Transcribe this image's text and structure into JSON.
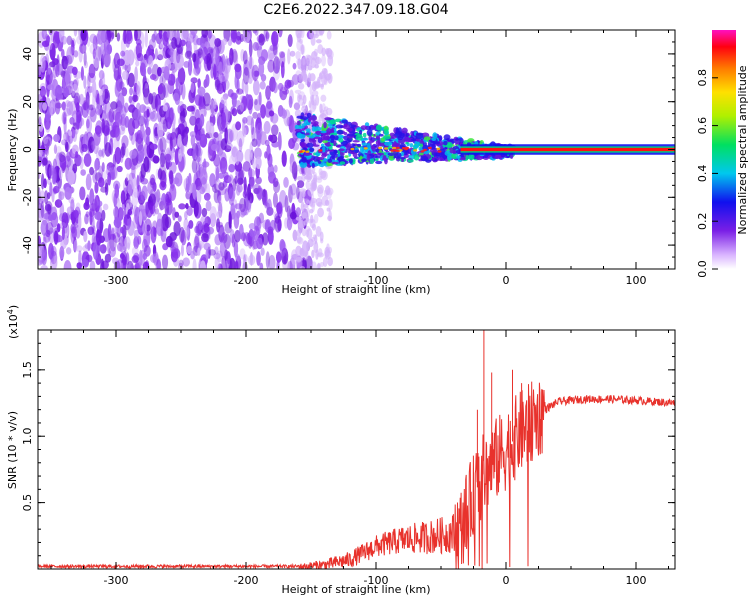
{
  "title": "C2E6.2022.347.09.18.G04",
  "chart_data": [
    {
      "type": "heatmap",
      "xlabel": "Height of straight line (km)",
      "ylabel": "Frequency (Hz)",
      "xlim": [
        -360,
        130
      ],
      "ylim": [
        -50,
        50
      ],
      "xticks": [
        -300,
        -200,
        -100,
        0,
        100
      ],
      "yticks": [
        -40,
        -20,
        0,
        20,
        40
      ],
      "colorbar": {
        "label": "Normalized spectral amplitude",
        "range": [
          0,
          1
        ],
        "ticks": [
          0.0,
          0.2,
          0.4,
          0.6,
          0.8
        ]
      }
    },
    {
      "type": "line",
      "xlabel": "Height of straight line (km)",
      "ylabel": "SNR (10 * v/v)",
      "yscale_label": "(x10",
      "yscale_exp": "4",
      "xlim": [
        -360,
        130
      ],
      "ylim": [
        0,
        1.8
      ],
      "xticks": [
        -300,
        -200,
        -100,
        0,
        100
      ],
      "yticks": [
        0.5,
        1.0,
        1.5
      ],
      "yticklabels": [
        "0.5",
        "1.0",
        "1.5"
      ],
      "line_color": "#e8322c",
      "series_profile": {
        "x": [
          -360,
          -250,
          -155,
          -140,
          -120,
          -100,
          -80,
          -60,
          -45,
          -35,
          -25,
          -18,
          -10,
          0,
          10,
          20,
          30,
          40,
          60,
          80,
          100,
          130
        ],
        "y": [
          0.02,
          0.02,
          0.02,
          0.03,
          0.07,
          0.17,
          0.22,
          0.24,
          0.26,
          0.3,
          0.55,
          0.7,
          0.8,
          0.9,
          1.02,
          1.1,
          1.2,
          1.26,
          1.28,
          1.28,
          1.27,
          1.25
        ]
      },
      "spikes": [
        {
          "x": -22,
          "y": 1.2
        },
        {
          "x": -17,
          "y": 1.8
        },
        {
          "x": -11,
          "y": 1.48
        },
        {
          "x": 5,
          "y": 1.5
        },
        {
          "x": 12,
          "y": 1.4
        }
      ]
    }
  ]
}
